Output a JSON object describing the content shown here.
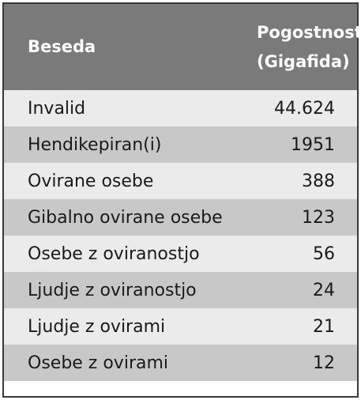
{
  "table": {
    "header": {
      "word": "Beseda",
      "frequency_line1": "Pogostnost",
      "frequency_line2": "(Gigafida)"
    },
    "rows": [
      {
        "word": "Invalid",
        "frequency": "44.624"
      },
      {
        "word": "Hendikepiran(i)",
        "frequency": "1951"
      },
      {
        "word": "Ovirane osebe",
        "frequency": "388"
      },
      {
        "word": "Gibalno ovirane osebe",
        "frequency": "123"
      },
      {
        "word": "Osebe z oviranostjo",
        "frequency": "56"
      },
      {
        "word": "Ljudje z oviranostjo",
        "frequency": "24"
      },
      {
        "word": "Ljudje z ovirami",
        "frequency": "21"
      },
      {
        "word": "Osebe z ovirami",
        "frequency": "12"
      }
    ]
  },
  "colors": {
    "header_bg": "#7a7a7a",
    "row_light": "#ebebeb",
    "row_dark": "#c8c8c8",
    "border": "#3a3a3a"
  }
}
